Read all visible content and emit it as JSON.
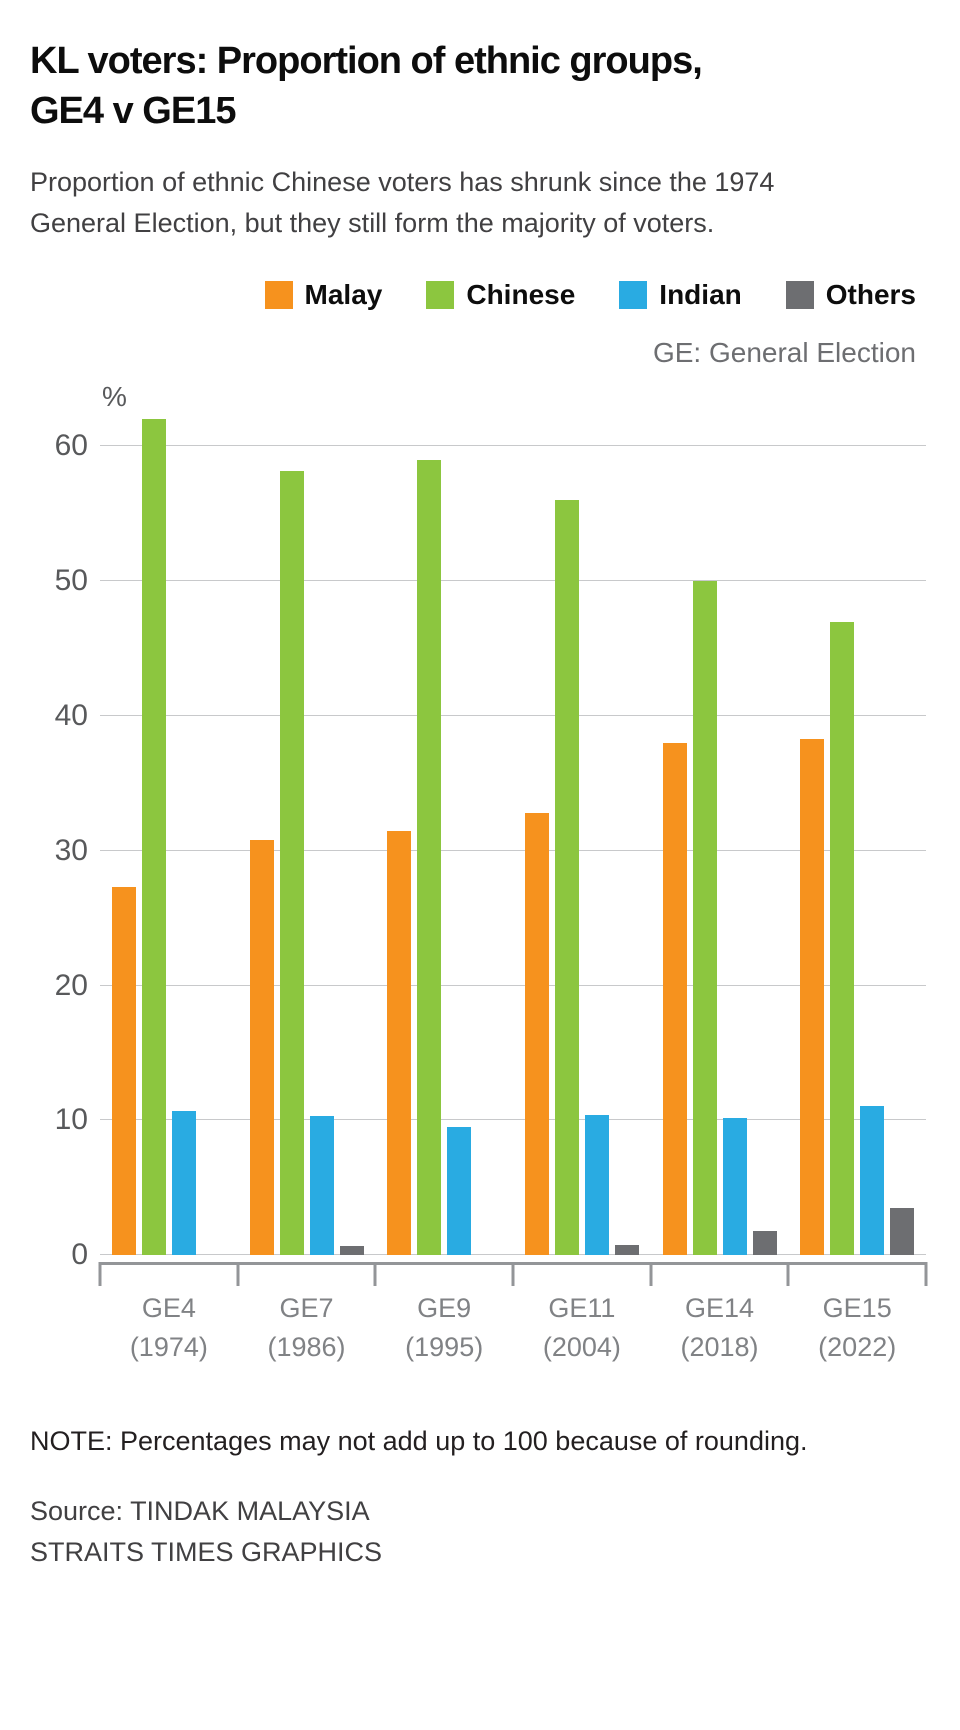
{
  "header": {
    "title_line1": "KL voters: Proportion of ethnic groups,",
    "title_line2": "GE4 v GE15",
    "subtitle": "Proportion of ethnic Chinese voters has shrunk since the 1974 General Election, but they still form the majority of voters."
  },
  "legend_note": "GE: General Election",
  "footer": {
    "note": "NOTE: Percentages may not add up to 100 because of rounding.",
    "source_line1": "Source: TINDAK MALAYSIA",
    "source_line2": "STRAITS TIMES GRAPHICS"
  },
  "chart_data": {
    "type": "bar",
    "title": "KL voters: Proportion of ethnic groups, GE4 v GE15",
    "subtitle": "Proportion of ethnic Chinese voters has shrunk since the 1974 General Election, but they still form the majority of voters.",
    "abbreviation_note": "GE: General Election",
    "ylabel": "%",
    "ylim": [
      0,
      60
    ],
    "yticks": [
      0,
      10,
      20,
      30,
      40,
      50,
      60
    ],
    "grid": true,
    "legend_position": "top-right",
    "categories": [
      {
        "ge": "GE4",
        "year": "(1974)"
      },
      {
        "ge": "GE7",
        "year": "(1986)"
      },
      {
        "ge": "GE9",
        "year": "(1995)"
      },
      {
        "ge": "GE11",
        "year": "(2004)"
      },
      {
        "ge": "GE14",
        "year": "(2018)"
      },
      {
        "ge": "GE15",
        "year": "(2022)"
      }
    ],
    "series": [
      {
        "name": "Malay",
        "color": "#F6921E",
        "values": [
          27.3,
          30.8,
          31.5,
          32.8,
          38.0,
          38.3
        ]
      },
      {
        "name": "Chinese",
        "color": "#8CC63F",
        "values": [
          62.0,
          58.2,
          59.0,
          56.0,
          50.0,
          47.0
        ]
      },
      {
        "name": "Indian",
        "color": "#29ABE2",
        "values": [
          10.7,
          10.3,
          9.5,
          10.4,
          10.2,
          11.1
        ]
      },
      {
        "name": "Others",
        "color": "#6D6E71",
        "values": [
          0,
          0.7,
          0,
          0.8,
          1.8,
          3.5
        ]
      }
    ],
    "grid_color": "#C8C9CB",
    "axis_color": "#939598"
  }
}
